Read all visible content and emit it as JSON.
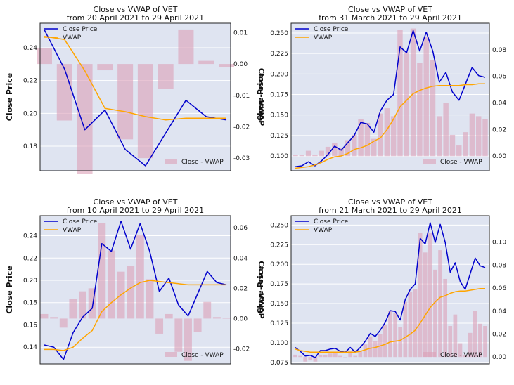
{
  "chart_data": [
    {
      "type": "line",
      "title": "Close vs VWAP of VET",
      "subtitle": "from 20 April 2021 to 29 April 2021",
      "ylabel": "Close Price",
      "y2label": "Close - VWAP",
      "ylim": [
        0.165,
        0.255
      ],
      "y2lim": [
        -0.034,
        0.013
      ],
      "yticks": [
        0.18,
        0.2,
        0.22,
        0.24
      ],
      "y2ticks": [
        -0.03,
        -0.02,
        -0.01,
        0.0,
        0.01
      ],
      "legend_upper": "upper-left",
      "legend_lower": "lower-right",
      "grid": true,
      "series": [
        {
          "name": "Close Price",
          "color": "#0000cc",
          "values": [
            0.251,
            0.227,
            0.19,
            0.202,
            0.178,
            0.168,
            0.188,
            0.208,
            0.198,
            0.196
          ]
        },
        {
          "name": "VWAP",
          "color": "#ffa500",
          "values": [
            0.247,
            0.245,
            0.226,
            0.203,
            0.201,
            0.198,
            0.196,
            0.197,
            0.197,
            0.197
          ]
        }
      ],
      "bars": {
        "name": "Close - VWAP",
        "color": "#dca0b8",
        "values": [
          0.005,
          -0.018,
          -0.035,
          -0.002,
          -0.024,
          -0.03,
          -0.008,
          0.011,
          0.001,
          -0.001
        ]
      }
    },
    {
      "type": "line",
      "title": "Close vs VWAP of VET",
      "subtitle": "from 31 March 2021 to 29 April 2021",
      "ylabel": "Close Price",
      "y2label": "Close - VWAP",
      "ylim": [
        0.082,
        0.262
      ],
      "y2lim": [
        -0.011,
        0.1
      ],
      "yticks": [
        0.1,
        0.125,
        0.15,
        0.175,
        0.2,
        0.225,
        0.25
      ],
      "y2ticks": [
        0.0,
        0.02,
        0.04,
        0.06,
        0.08
      ],
      "legend_upper": "upper-left",
      "legend_lower": "lower-right",
      "grid": true,
      "series": [
        {
          "name": "Close Price",
          "color": "#0000cc",
          "values": [
            0.087,
            0.088,
            0.093,
            0.088,
            0.094,
            0.102,
            0.112,
            0.107,
            0.116,
            0.125,
            0.141,
            0.139,
            0.129,
            0.155,
            0.168,
            0.175,
            0.233,
            0.226,
            0.253,
            0.228,
            0.251,
            0.228,
            0.19,
            0.202,
            0.178,
            0.168,
            0.188,
            0.208,
            0.198,
            0.196
          ]
        },
        {
          "name": "VWAP",
          "color": "#ffa500",
          "values": [
            0.085,
            0.086,
            0.087,
            0.089,
            0.092,
            0.096,
            0.099,
            0.1,
            0.103,
            0.108,
            0.11,
            0.113,
            0.118,
            0.122,
            0.132,
            0.145,
            0.16,
            0.168,
            0.176,
            0.18,
            0.183,
            0.185,
            0.186,
            0.186,
            0.186,
            0.186,
            0.187,
            0.187,
            0.188,
            0.188
          ]
        }
      ],
      "bars": {
        "name": "Close - VWAP",
        "color": "#dca0b8",
        "values": [
          0.001,
          0.001,
          0.004,
          0.001,
          0.004,
          0.007,
          0.01,
          0.006,
          0.012,
          0.016,
          0.028,
          0.025,
          0.013,
          0.032,
          0.036,
          0.03,
          0.095,
          0.078,
          0.096,
          0.07,
          0.09,
          0.072,
          0.03,
          0.04,
          0.016,
          0.008,
          0.018,
          0.032,
          0.03,
          0.028
        ]
      }
    },
    {
      "type": "line",
      "title": "Close vs VWAP of VET",
      "subtitle": "from 10 April 2021 to 29 April 2021",
      "ylabel": "Close Price",
      "y2label": "Close - VWAP",
      "ylim": [
        0.125,
        0.258
      ],
      "y2lim": [
        -0.03,
        0.068
      ],
      "yticks": [
        0.14,
        0.16,
        0.18,
        0.2,
        0.22,
        0.24
      ],
      "y2ticks": [
        -0.02,
        0.0,
        0.02,
        0.04,
        0.06
      ],
      "legend_upper": "upper-left",
      "legend_lower": "lower-right",
      "grid": true,
      "series": [
        {
          "name": "Close Price",
          "color": "#0000cc",
          "values": [
            0.142,
            0.14,
            0.129,
            0.153,
            0.167,
            0.175,
            0.233,
            0.226,
            0.253,
            0.228,
            0.251,
            0.226,
            0.19,
            0.202,
            0.178,
            0.168,
            0.188,
            0.208,
            0.198,
            0.196
          ]
        },
        {
          "name": "VWAP",
          "color": "#ffa500",
          "values": [
            0.138,
            0.138,
            0.137,
            0.14,
            0.148,
            0.155,
            0.172,
            0.18,
            0.187,
            0.193,
            0.198,
            0.2,
            0.199,
            0.198,
            0.197,
            0.196,
            0.196,
            0.196,
            0.196,
            0.196
          ]
        }
      ],
      "bars": {
        "name": "Close - VWAP",
        "color": "#dca0b8",
        "values": [
          0.003,
          0.001,
          -0.006,
          0.013,
          0.018,
          0.02,
          0.063,
          0.045,
          0.031,
          0.035,
          0.055,
          0.026,
          -0.01,
          0.003,
          -0.022,
          -0.028,
          -0.009,
          0.011,
          0.001,
          0.0
        ]
      }
    },
    {
      "type": "line",
      "title": "Close vs VWAP of VET",
      "subtitle": "from 21 March 2021 to 29 April 2021",
      "ylabel": "Close Price",
      "y2label": "Close - VWAP",
      "ylim": [
        0.073,
        0.262
      ],
      "y2lim": [
        -0.006,
        0.123
      ],
      "yticks": [
        0.075,
        0.1,
        0.125,
        0.15,
        0.175,
        0.2,
        0.225,
        0.25
      ],
      "y2ticks": [
        0.0,
        0.02,
        0.04,
        0.06,
        0.08,
        0.1
      ],
      "legend_upper": "upper-left",
      "legend_lower": "lower-right",
      "grid": true,
      "series": [
        {
          "name": "Close Price",
          "color": "#0000cc",
          "values": [
            0.094,
            0.089,
            0.083,
            0.084,
            0.081,
            0.09,
            0.09,
            0.092,
            0.093,
            0.089,
            0.088,
            0.094,
            0.088,
            0.094,
            0.102,
            0.112,
            0.108,
            0.116,
            0.126,
            0.141,
            0.14,
            0.129,
            0.155,
            0.168,
            0.175,
            0.233,
            0.226,
            0.253,
            0.228,
            0.251,
            0.228,
            0.19,
            0.202,
            0.178,
            0.168,
            0.188,
            0.208,
            0.198,
            0.196
          ]
        },
        {
          "name": "VWAP",
          "color": "#ffa500",
          "values": [
            0.092,
            0.09,
            0.089,
            0.088,
            0.088,
            0.088,
            0.088,
            0.088,
            0.088,
            0.088,
            0.088,
            0.088,
            0.088,
            0.089,
            0.091,
            0.093,
            0.094,
            0.096,
            0.098,
            0.101,
            0.102,
            0.103,
            0.107,
            0.111,
            0.116,
            0.125,
            0.135,
            0.145,
            0.152,
            0.158,
            0.16,
            0.163,
            0.165,
            0.166,
            0.166,
            0.167,
            0.168,
            0.169,
            0.169
          ]
        }
      ],
      "bars": {
        "name": "Close - VWAP",
        "color": "#dca0b8",
        "values": [
          0.002,
          0.001,
          -0.004,
          -0.003,
          -0.004,
          0.002,
          0.002,
          0.003,
          0.004,
          0.001,
          0.0,
          0.005,
          0.001,
          0.005,
          0.011,
          0.018,
          0.014,
          0.02,
          0.028,
          0.04,
          0.038,
          0.026,
          0.048,
          0.057,
          0.059,
          0.108,
          0.091,
          0.108,
          0.076,
          0.093,
          0.068,
          0.027,
          0.037,
          0.012,
          0.002,
          0.021,
          0.04,
          0.029,
          0.027
        ]
      }
    }
  ]
}
